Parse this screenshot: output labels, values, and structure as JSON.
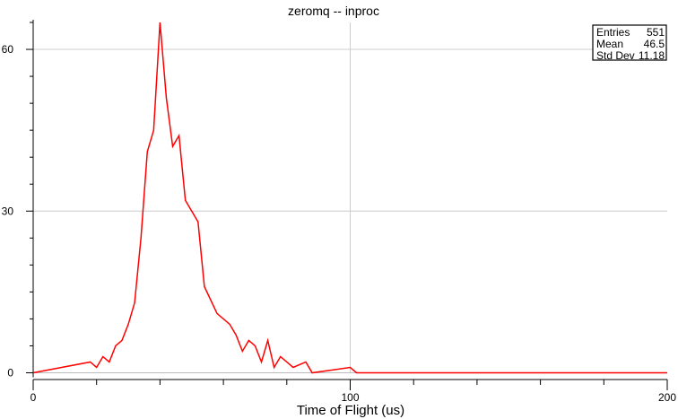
{
  "chart_data": {
    "type": "histogram",
    "title": "zeromq -- inproc",
    "xlabel": "Time of Flight (us)",
    "ylabel": "",
    "xlim": [
      0,
      200
    ],
    "ylim": [
      0,
      65
    ],
    "bin_width": 2,
    "x_ticks": [
      0,
      100,
      200
    ],
    "y_ticks": [
      0,
      30,
      60
    ],
    "grid": true,
    "line_color": "#ff0000",
    "stats": {
      "entries_label": "Entries",
      "entries": "551",
      "mean_label": "Mean",
      "mean": "46.5",
      "std_label": "Std Dev",
      "std": "11.18"
    },
    "bins": [
      {
        "x": 18,
        "y": 2
      },
      {
        "x": 20,
        "y": 1
      },
      {
        "x": 22,
        "y": 3
      },
      {
        "x": 24,
        "y": 2
      },
      {
        "x": 26,
        "y": 5
      },
      {
        "x": 28,
        "y": 6
      },
      {
        "x": 30,
        "y": 9
      },
      {
        "x": 32,
        "y": 13
      },
      {
        "x": 34,
        "y": 25
      },
      {
        "x": 36,
        "y": 41
      },
      {
        "x": 38,
        "y": 45
      },
      {
        "x": 40,
        "y": 65
      },
      {
        "x": 42,
        "y": 51
      },
      {
        "x": 44,
        "y": 42
      },
      {
        "x": 46,
        "y": 44
      },
      {
        "x": 48,
        "y": 32
      },
      {
        "x": 50,
        "y": 32
      },
      {
        "x": 52,
        "y": 28
      },
      {
        "x": 54,
        "y": 16
      },
      {
        "x": 56,
        "y": 16
      },
      {
        "x": 58,
        "y": 11
      },
      {
        "x": 60,
        "y": 11
      },
      {
        "x": 62,
        "y": 9
      },
      {
        "x": 64,
        "y": 7
      },
      {
        "x": 66,
        "y": 4
      },
      {
        "x": 68,
        "y": 6
      },
      {
        "x": 70,
        "y": 5
      },
      {
        "x": 72,
        "y": 2
      },
      {
        "x": 74,
        "y": 6
      },
      {
        "x": 76,
        "y": 1
      },
      {
        "x": 78,
        "y": 3
      },
      {
        "x": 80,
        "y": 2
      },
      {
        "x": 82,
        "y": 1
      },
      {
        "x": 84,
        "y": 1
      },
      {
        "x": 86,
        "y": 2
      },
      {
        "x": 100,
        "y": 1
      }
    ]
  }
}
